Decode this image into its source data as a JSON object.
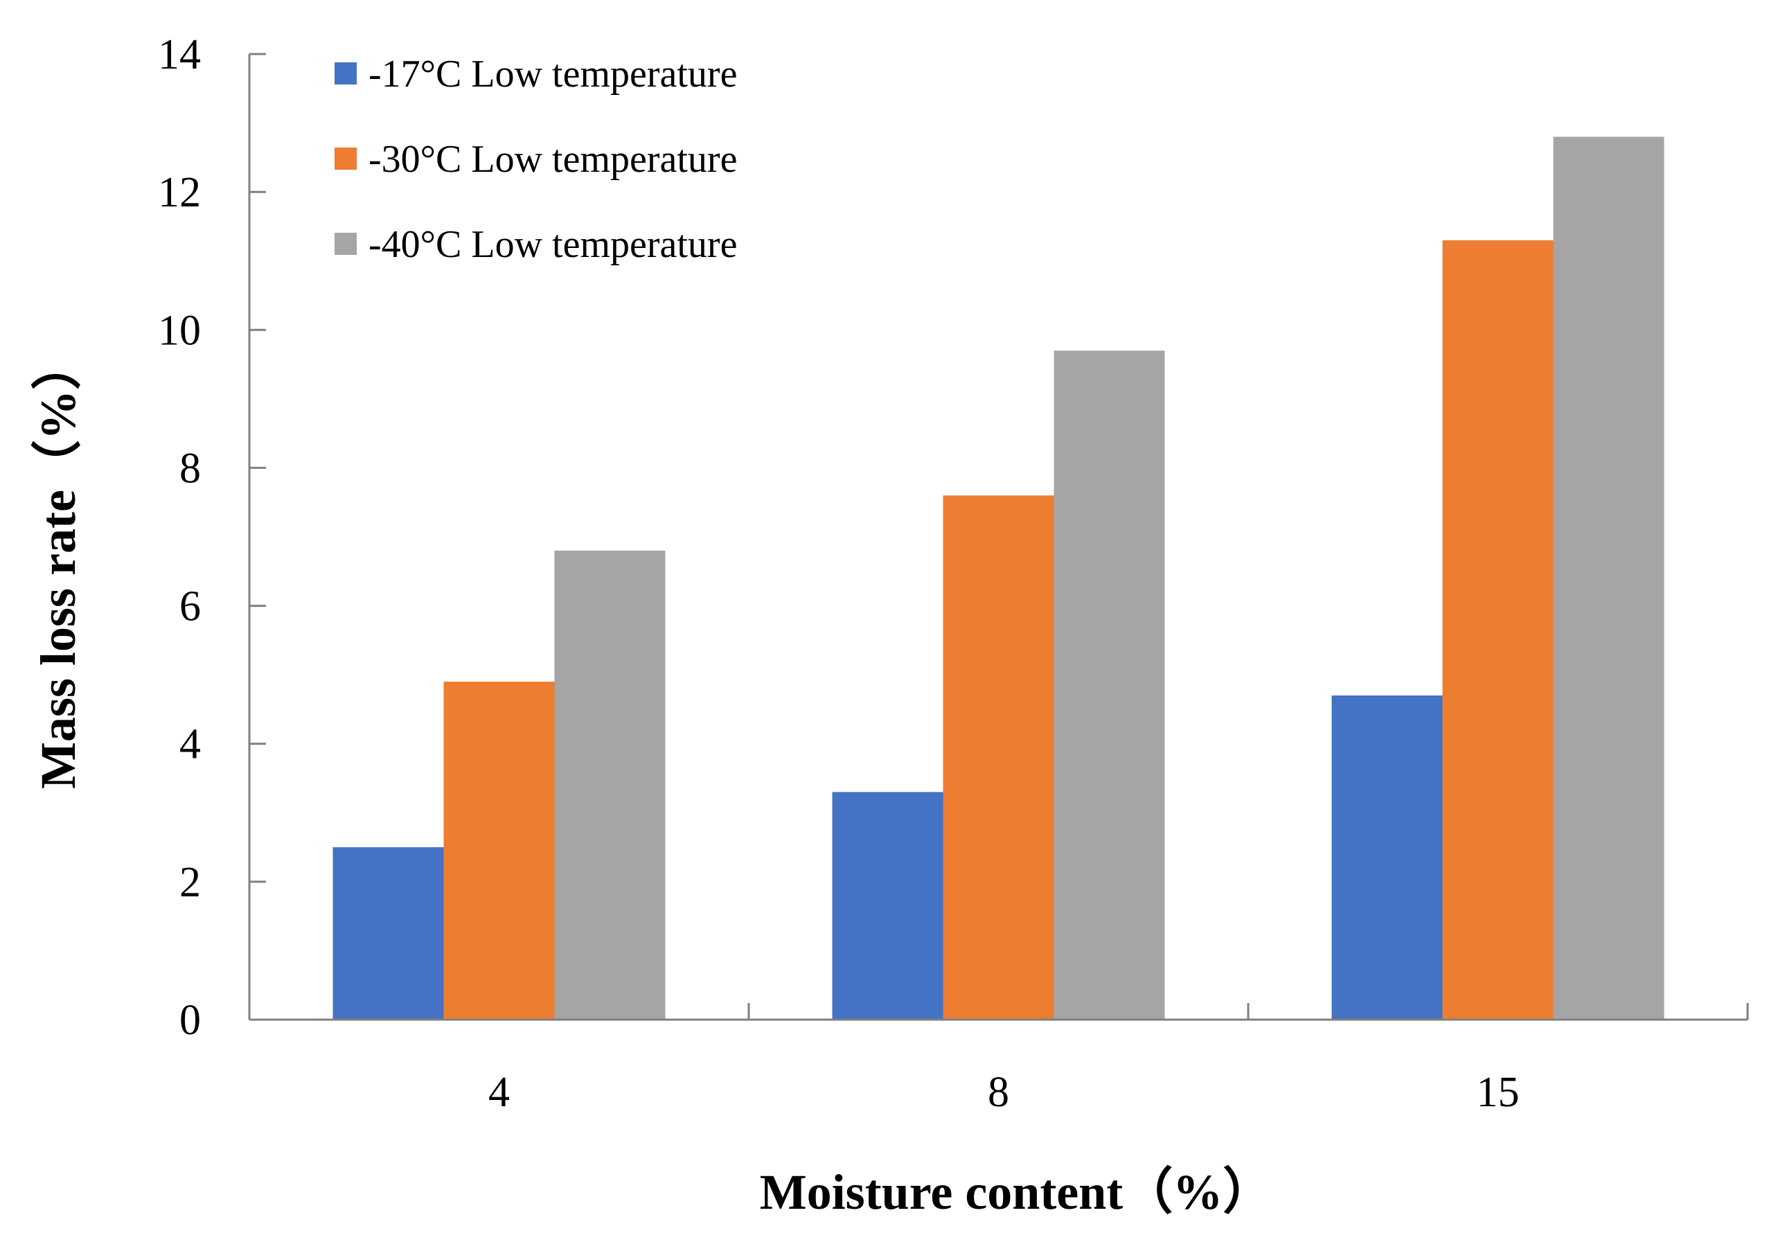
{
  "chart_data": {
    "type": "bar",
    "categories": [
      "4",
      "8",
      "15"
    ],
    "series": [
      {
        "name": "-17°C Low temperature",
        "color": "#4472C4",
        "values": [
          2.5,
          3.3,
          4.7
        ]
      },
      {
        "name": "-30°C Low temperature",
        "color": "#ED7D31",
        "values": [
          4.9,
          7.6,
          11.3
        ]
      },
      {
        "name": "-40°C Low temperature",
        "color": "#A5A5A5",
        "values": [
          6.8,
          9.7,
          12.8
        ]
      }
    ],
    "xlabel": "Moisture content（%）",
    "ylabel": "Mass loss rate（%）",
    "ylim": [
      0,
      14
    ],
    "yticks": [
      0,
      2,
      4,
      6,
      8,
      10,
      12,
      14
    ],
    "grid": false,
    "legend": "top-left"
  }
}
